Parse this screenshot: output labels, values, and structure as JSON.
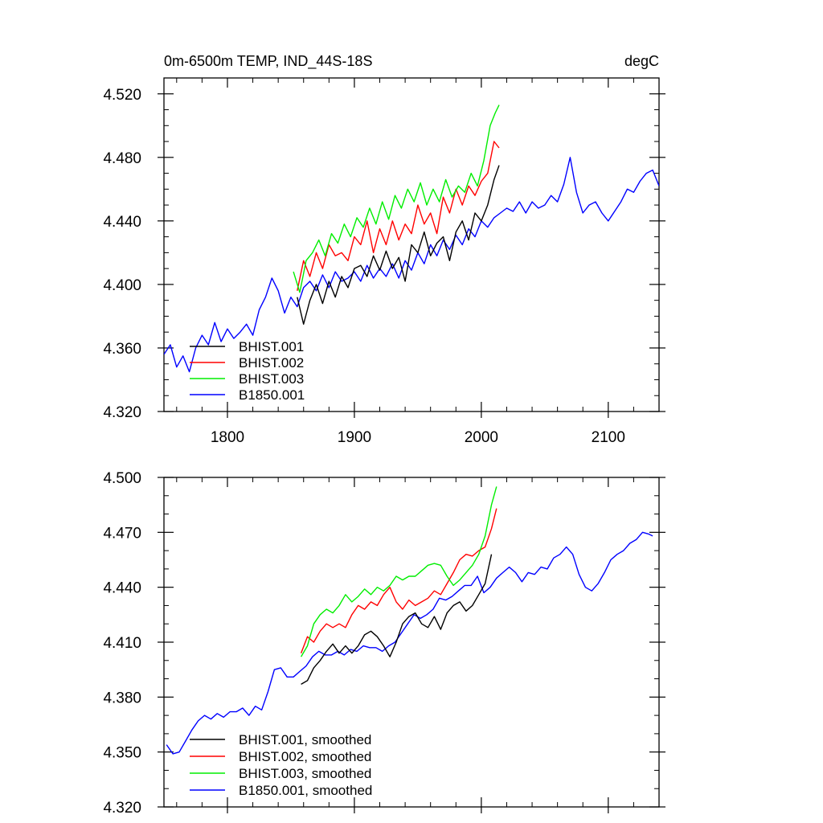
{
  "chart_data": [
    {
      "type": "line",
      "title_left": "0m-6500m TEMP, IND_44S-18S",
      "title_right": "degC",
      "xlim": [
        1750,
        2140
      ],
      "ylim": [
        4.32,
        4.53
      ],
      "x_ticks": [
        1800,
        1900,
        2000,
        2100
      ],
      "x_tick_labels": [
        "1800",
        "1900",
        "2000",
        "2100"
      ],
      "y_ticks": [
        4.32,
        4.36,
        4.4,
        4.44,
        4.48,
        4.52
      ],
      "y_tick_labels": [
        "4.320",
        "4.360",
        "4.400",
        "4.440",
        "4.480",
        "4.520"
      ],
      "grid": false,
      "legend_position": "bottom-left",
      "series": [
        {
          "name": "BHIST.001",
          "color": "#000000",
          "x": [
            1855,
            1860,
            1865,
            1870,
            1875,
            1880,
            1885,
            1890,
            1895,
            1900,
            1905,
            1910,
            1915,
            1920,
            1925,
            1930,
            1935,
            1940,
            1945,
            1950,
            1955,
            1960,
            1965,
            1970,
            1975,
            1980,
            1985,
            1990,
            1995,
            2000,
            2005,
            2010,
            2014
          ],
          "y": [
            4.392,
            4.375,
            4.39,
            4.4,
            4.388,
            4.402,
            4.392,
            4.405,
            4.398,
            4.41,
            4.412,
            4.405,
            4.418,
            4.409,
            4.421,
            4.41,
            4.417,
            4.402,
            4.425,
            4.42,
            4.433,
            4.418,
            4.426,
            4.43,
            4.415,
            4.433,
            4.44,
            4.428,
            4.445,
            4.44,
            4.45,
            4.466,
            4.475
          ]
        },
        {
          "name": "BHIST.002",
          "color": "#ff0000",
          "x": [
            1855,
            1860,
            1865,
            1870,
            1875,
            1880,
            1885,
            1890,
            1895,
            1900,
            1905,
            1910,
            1915,
            1920,
            1925,
            1930,
            1935,
            1940,
            1945,
            1950,
            1955,
            1960,
            1965,
            1970,
            1975,
            1980,
            1985,
            1990,
            1995,
            2000,
            2005,
            2010,
            2014
          ],
          "y": [
            4.396,
            4.415,
            4.405,
            4.42,
            4.41,
            4.425,
            4.418,
            4.42,
            4.415,
            4.43,
            4.425,
            4.44,
            4.42,
            4.435,
            4.425,
            4.44,
            4.428,
            4.438,
            4.432,
            4.45,
            4.438,
            4.445,
            4.432,
            4.455,
            4.445,
            4.46,
            4.45,
            4.462,
            4.456,
            4.465,
            4.47,
            4.49,
            4.486
          ]
        },
        {
          "name": "BHIST.003",
          "color": "#00ee00",
          "x": [
            1852,
            1857,
            1862,
            1867,
            1872,
            1877,
            1882,
            1887,
            1892,
            1897,
            1902,
            1907,
            1912,
            1917,
            1922,
            1927,
            1932,
            1937,
            1942,
            1947,
            1952,
            1957,
            1962,
            1967,
            1972,
            1977,
            1982,
            1987,
            1992,
            1997,
            2002,
            2007,
            2011,
            2014
          ],
          "y": [
            4.408,
            4.395,
            4.415,
            4.42,
            4.428,
            4.418,
            4.432,
            4.426,
            4.438,
            4.43,
            4.442,
            4.436,
            4.448,
            4.438,
            4.452,
            4.441,
            4.456,
            4.448,
            4.46,
            4.452,
            4.464,
            4.45,
            4.46,
            4.452,
            4.466,
            4.455,
            4.462,
            4.458,
            4.47,
            4.462,
            4.478,
            4.5,
            4.508,
            4.513
          ]
        },
        {
          "name": "B1850.001",
          "color": "#0000ff",
          "x": [
            1750,
            1755,
            1760,
            1765,
            1770,
            1775,
            1780,
            1785,
            1790,
            1795,
            1800,
            1805,
            1810,
            1815,
            1820,
            1825,
            1830,
            1835,
            1840,
            1845,
            1850,
            1855,
            1860,
            1865,
            1870,
            1875,
            1880,
            1885,
            1890,
            1895,
            1900,
            1905,
            1910,
            1915,
            1920,
            1925,
            1930,
            1935,
            1940,
            1945,
            1950,
            1955,
            1960,
            1965,
            1970,
            1975,
            1980,
            1985,
            1990,
            1995,
            2000,
            2005,
            2010,
            2015,
            2020,
            2025,
            2030,
            2035,
            2040,
            2045,
            2050,
            2055,
            2060,
            2065,
            2070,
            2075,
            2080,
            2085,
            2090,
            2095,
            2100,
            2105,
            2110,
            2115,
            2120,
            2125,
            2130,
            2135,
            2140
          ],
          "y": [
            4.356,
            4.362,
            4.348,
            4.355,
            4.345,
            4.36,
            4.368,
            4.362,
            4.376,
            4.364,
            4.372,
            4.366,
            4.37,
            4.375,
            4.368,
            4.384,
            4.392,
            4.404,
            4.396,
            4.382,
            4.392,
            4.386,
            4.398,
            4.402,
            4.396,
            4.406,
            4.398,
            4.408,
            4.402,
            4.404,
            4.408,
            4.402,
            4.412,
            4.404,
            4.41,
            4.405,
            4.413,
            4.404,
            4.415,
            4.409,
            4.42,
            4.413,
            4.425,
            4.418,
            4.428,
            4.422,
            4.431,
            4.425,
            4.435,
            4.43,
            4.44,
            4.436,
            4.442,
            4.445,
            4.448,
            4.446,
            4.452,
            4.445,
            4.452,
            4.448,
            4.45,
            4.456,
            4.452,
            4.463,
            4.48,
            4.458,
            4.445,
            4.45,
            4.452,
            4.445,
            4.44,
            4.446,
            4.452,
            4.46,
            4.458,
            4.465,
            4.47,
            4.472,
            4.462
          ]
        }
      ]
    },
    {
      "type": "line",
      "xlim": [
        1750,
        2140
      ],
      "ylim": [
        4.32,
        4.5
      ],
      "x_ticks": [
        1800,
        1900,
        2000,
        2100
      ],
      "x_tick_labels": [
        "",
        "",
        "",
        ""
      ],
      "y_ticks": [
        4.32,
        4.35,
        4.38,
        4.41,
        4.44,
        4.47,
        4.5
      ],
      "y_tick_labels": [
        "4.320",
        "4.350",
        "4.380",
        "4.410",
        "4.440",
        "4.470",
        "4.500"
      ],
      "grid": false,
      "legend_position": "bottom-left",
      "series": [
        {
          "name": "BHIST.001, smoothed",
          "color": "#000000",
          "x": [
            1858,
            1863,
            1868,
            1873,
            1878,
            1883,
            1888,
            1893,
            1898,
            1903,
            1908,
            1913,
            1918,
            1923,
            1928,
            1933,
            1938,
            1943,
            1948,
            1953,
            1958,
            1963,
            1968,
            1973,
            1978,
            1983,
            1988,
            1993,
            1998,
            2003,
            2008
          ],
          "y": [
            4.387,
            4.389,
            4.396,
            4.4,
            4.405,
            4.409,
            4.404,
            4.408,
            4.404,
            4.408,
            4.414,
            4.416,
            4.413,
            4.408,
            4.402,
            4.41,
            4.42,
            4.424,
            4.426,
            4.42,
            4.418,
            4.424,
            4.417,
            4.426,
            4.43,
            4.432,
            4.427,
            4.43,
            4.436,
            4.442,
            4.458
          ]
        },
        {
          "name": "BHIST.002, smoothed",
          "color": "#ff0000",
          "x": [
            1858,
            1863,
            1868,
            1873,
            1878,
            1883,
            1888,
            1893,
            1898,
            1903,
            1908,
            1913,
            1918,
            1923,
            1928,
            1933,
            1938,
            1943,
            1948,
            1953,
            1958,
            1963,
            1968,
            1973,
            1978,
            1983,
            1988,
            1993,
            1998,
            2003,
            2008,
            2012
          ],
          "y": [
            4.404,
            4.413,
            4.41,
            4.416,
            4.42,
            4.418,
            4.42,
            4.418,
            4.425,
            4.43,
            4.428,
            4.432,
            4.43,
            4.436,
            4.44,
            4.432,
            4.428,
            4.433,
            4.43,
            4.432,
            4.434,
            4.438,
            4.436,
            4.442,
            4.448,
            4.455,
            4.458,
            4.457,
            4.46,
            4.462,
            4.472,
            4.483
          ]
        },
        {
          "name": "BHIST.003, smoothed",
          "color": "#00ee00",
          "x": [
            1858,
            1863,
            1868,
            1873,
            1878,
            1883,
            1888,
            1893,
            1898,
            1903,
            1908,
            1913,
            1918,
            1923,
            1928,
            1933,
            1938,
            1943,
            1948,
            1953,
            1958,
            1963,
            1968,
            1973,
            1978,
            1983,
            1988,
            1993,
            1998,
            2003,
            2008,
            2012
          ],
          "y": [
            4.402,
            4.408,
            4.42,
            4.425,
            4.428,
            4.426,
            4.43,
            4.436,
            4.432,
            4.435,
            4.439,
            4.436,
            4.44,
            4.438,
            4.441,
            4.446,
            4.444,
            4.446,
            4.446,
            4.449,
            4.452,
            4.453,
            4.452,
            4.446,
            4.441,
            4.444,
            4.448,
            4.452,
            4.458,
            4.468,
            4.485,
            4.495
          ]
        },
        {
          "name": "B1850.001, smoothed",
          "color": "#0000ff",
          "x": [
            1752,
            1757,
            1762,
            1767,
            1772,
            1777,
            1782,
            1787,
            1792,
            1797,
            1802,
            1807,
            1812,
            1817,
            1822,
            1827,
            1832,
            1837,
            1842,
            1847,
            1852,
            1857,
            1862,
            1867,
            1872,
            1877,
            1882,
            1887,
            1892,
            1897,
            1902,
            1907,
            1912,
            1917,
            1922,
            1927,
            1932,
            1937,
            1942,
            1947,
            1952,
            1957,
            1962,
            1967,
            1972,
            1977,
            1982,
            1987,
            1992,
            1997,
            2002,
            2007,
            2012,
            2017,
            2022,
            2027,
            2032,
            2037,
            2042,
            2047,
            2052,
            2057,
            2062,
            2067,
            2072,
            2077,
            2082,
            2087,
            2092,
            2097,
            2102,
            2107,
            2112,
            2117,
            2122,
            2127,
            2132,
            2135
          ],
          "y": [
            4.354,
            4.349,
            4.35,
            4.356,
            4.362,
            4.367,
            4.37,
            4.368,
            4.371,
            4.369,
            4.372,
            4.372,
            4.374,
            4.37,
            4.375,
            4.373,
            4.383,
            4.395,
            4.396,
            4.391,
            4.391,
            4.394,
            4.397,
            4.402,
            4.405,
            4.403,
            4.403,
            4.405,
            4.403,
            4.406,
            4.405,
            4.408,
            4.407,
            4.407,
            4.405,
            4.408,
            4.41,
            4.415,
            4.42,
            4.425,
            4.423,
            4.425,
            4.428,
            4.434,
            4.433,
            4.435,
            4.438,
            4.441,
            4.441,
            4.446,
            4.437,
            4.44,
            4.445,
            4.448,
            4.451,
            4.448,
            4.443,
            4.448,
            4.447,
            4.451,
            4.45,
            4.456,
            4.458,
            4.462,
            4.458,
            4.447,
            4.44,
            4.438,
            4.442,
            4.448,
            4.455,
            4.458,
            4.46,
            4.464,
            4.466,
            4.47,
            4.469,
            4.468
          ]
        }
      ]
    }
  ]
}
